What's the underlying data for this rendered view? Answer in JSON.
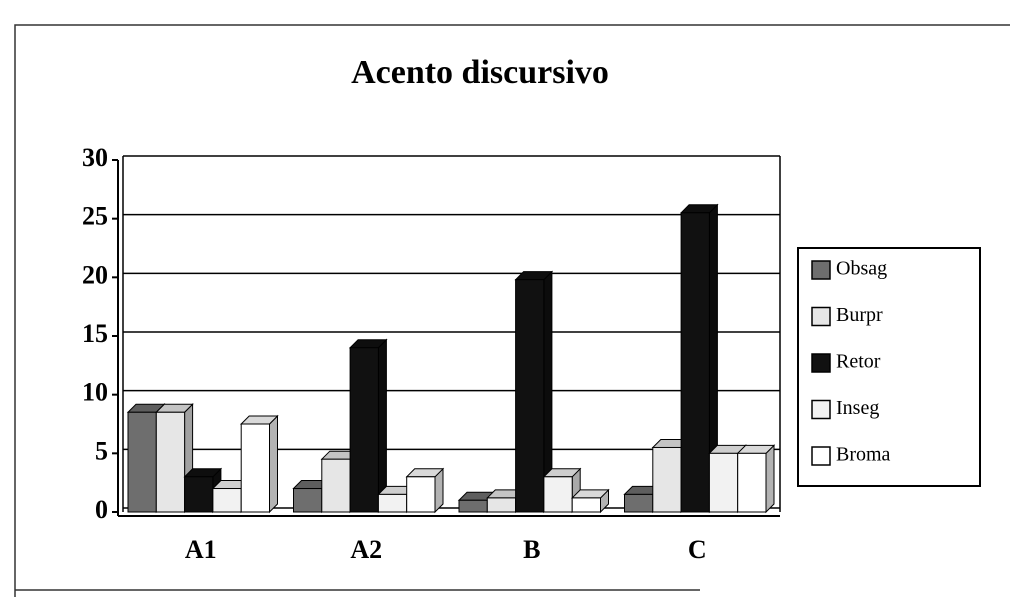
{
  "chart_data": {
    "type": "bar",
    "title": "Acento discursivo",
    "categories": [
      "A1",
      "A2",
      "B",
      "C"
    ],
    "series": [
      {
        "name": "Obsag",
        "color": "#6e6e6e",
        "values": [
          8.5,
          2,
          1,
          1.5
        ]
      },
      {
        "name": "Burpr",
        "color": "#e6e6e6",
        "values": [
          8.5,
          4.5,
          1.2,
          5.5
        ]
      },
      {
        "name": "Retor",
        "color": "#111111",
        "values": [
          3,
          14,
          19.8,
          25.5
        ]
      },
      {
        "name": "Inseg",
        "color": "#f2f2f2",
        "values": [
          2,
          1.5,
          3,
          5
        ]
      },
      {
        "name": "Broma",
        "color": "#ffffff",
        "values": [
          7.5,
          3,
          1.2,
          5
        ]
      }
    ],
    "ylim": [
      0,
      30
    ],
    "yticks": [
      0,
      5,
      10,
      15,
      20,
      25,
      30
    ],
    "grid": true,
    "legend": "right"
  }
}
